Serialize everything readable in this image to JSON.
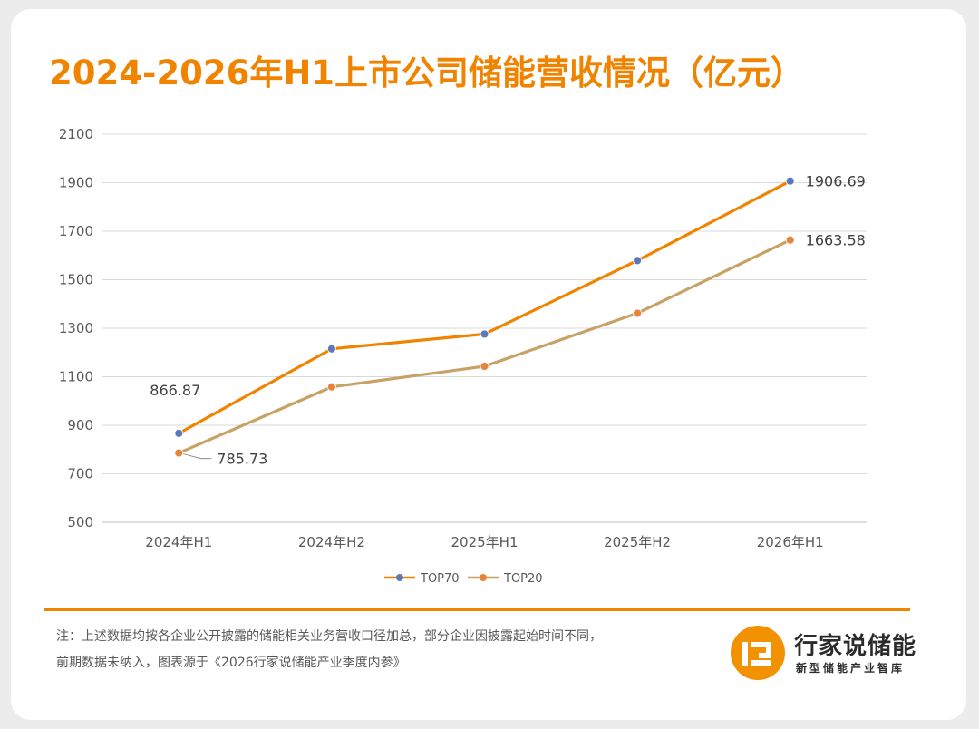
{
  "title": "2024-2026年H1上市公司储能营收情况（亿元）",
  "chart_data": {
    "type": "line",
    "categories": [
      "2024年H1",
      "2024年H2",
      "2025年H1",
      "2025年H2",
      "2026年H1"
    ],
    "ylim": [
      500,
      2100
    ],
    "yticks": [
      500,
      700,
      900,
      1100,
      1300,
      1500,
      1700,
      1900,
      2100
    ],
    "grid": true,
    "legend_position": "bottom",
    "series": [
      {
        "name": "TOP70",
        "color": "#f08300",
        "marker_color": "#5b79b8",
        "values": [
          866.87,
          1215,
          1276,
          1579,
          1906.69
        ],
        "labels": [
          "866.87",
          "",
          "",
          "",
          "1906.69"
        ]
      },
      {
        "name": "TOP20",
        "color": "#c8a165",
        "marker_color": "#e8843a",
        "values": [
          785.73,
          1058,
          1143,
          1362,
          1663.58
        ],
        "labels": [
          "785.73",
          "",
          "",
          "",
          "1663.58"
        ]
      }
    ]
  },
  "footnote": {
    "line1": "注：上述数据均按各企业公开披露的储能相关业务营收口径加总，部分企业因披露起始时间不同，",
    "line2": "前期数据未纳入，图表源于《2026行家说储能产业季度内参》"
  },
  "brand": {
    "name": "行家说储能",
    "tagline": "新型储能产业智库",
    "color": "#f39200"
  }
}
